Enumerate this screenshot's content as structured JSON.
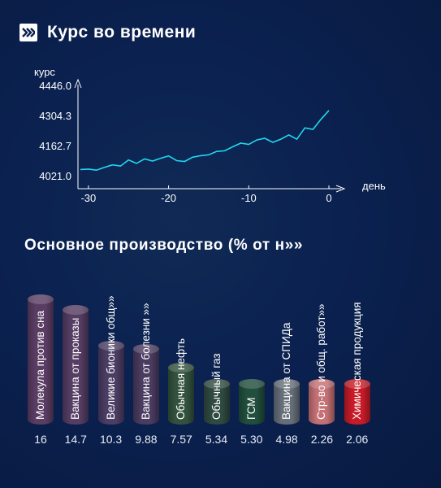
{
  "header": {
    "title": "Курс во времени",
    "icon": "double-chevron-right-icon"
  },
  "line_chart": {
    "ylabel": "курс",
    "xlabel": "день",
    "yticks": [
      "4446.0",
      "4304.3",
      "4162.7",
      "4021.0"
    ],
    "xticks": [
      "-30",
      "-20",
      "-10",
      "0"
    ],
    "line_color": "#21d6f0"
  },
  "chart_data": [
    {
      "type": "line",
      "title": "Курс во времени",
      "xlabel": "день",
      "ylabel": "курс",
      "ylim": [
        4021.0,
        4446.0
      ],
      "xlim": [
        -31,
        0
      ],
      "series": [
        {
          "x": [
            -31,
            -30,
            -29,
            -28,
            -27,
            -26,
            -25,
            -24,
            -23,
            -22,
            -21,
            -20,
            -19,
            -18,
            -17,
            -16,
            -15,
            -14,
            -13,
            -12,
            -11,
            -10,
            -9,
            -8,
            -7,
            -6,
            -5,
            -4,
            -3,
            -2,
            -1,
            0
          ],
          "values": [
            4050,
            4052,
            4047,
            4060,
            4072,
            4066,
            4095,
            4079,
            4100,
            4090,
            4103,
            4114,
            4092,
            4088,
            4108,
            4115,
            4119,
            4135,
            4138,
            4157,
            4174,
            4168,
            4189,
            4197,
            4178,
            4193,
            4213,
            4193,
            4246,
            4239,
            4286,
            4328
          ]
        }
      ]
    },
    {
      "type": "bar",
      "title": "Основное производство (% от н»»",
      "categories": [
        "Молекула против сна",
        "Вакцина от проказы",
        "Великие бионики общ»»",
        "Вакцина от болезни »»",
        "Обычная нефть",
        "Обычный газ",
        "ГСМ",
        "Вакцина от СПИДа",
        "Стр-во и общ. работ»»",
        "Химическая продукция"
      ],
      "values": [
        16,
        14.7,
        10.3,
        9.88,
        7.57,
        5.34,
        5.3,
        4.98,
        2.26,
        2.06
      ],
      "value_labels": [
        "16",
        "14.7",
        "10.3",
        "9.88",
        "7.57",
        "5.34",
        "5.30",
        "4.98",
        "2.26",
        "2.06"
      ],
      "colors": [
        "#5a3d63",
        "#553d63",
        "#4b3d64",
        "#4a3b60",
        "#33523e",
        "#2f4a40",
        "#214e3d",
        "#666e78",
        "#c47075",
        "#c81b27"
      ]
    }
  ],
  "production": {
    "title": "Основное производство (% от н»»"
  }
}
